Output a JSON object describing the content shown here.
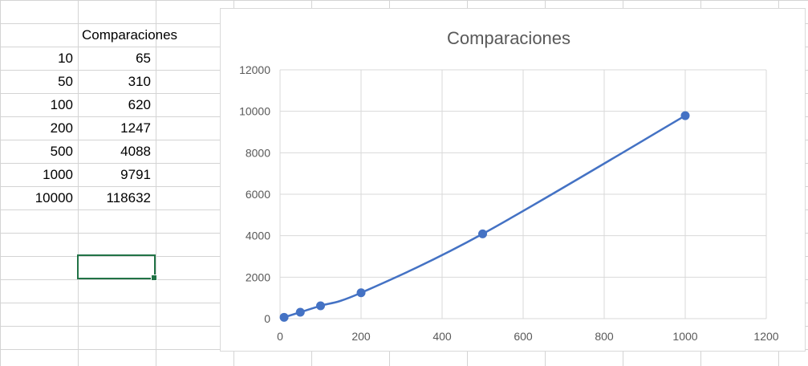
{
  "sheet": {
    "header_b": "Comparaciones",
    "rows": [
      {
        "a": "10",
        "b": "65"
      },
      {
        "a": "50",
        "b": "310"
      },
      {
        "a": "100",
        "b": "620"
      },
      {
        "a": "200",
        "b": "1247"
      },
      {
        "a": "500",
        "b": "4088"
      },
      {
        "a": "1000",
        "b": "9791"
      },
      {
        "a": "10000",
        "b": "118632"
      }
    ],
    "selection_color": "#217346"
  },
  "chart_data": {
    "type": "scatter",
    "title": "Comparaciones",
    "xlabel": "",
    "ylabel": "",
    "xlim": [
      0,
      1200
    ],
    "ylim": [
      0,
      12000
    ],
    "xticks": [
      "0",
      "200",
      "400",
      "600",
      "800",
      "1000",
      "1200"
    ],
    "yticks": [
      "0",
      "2000",
      "4000",
      "6000",
      "8000",
      "10000",
      "12000"
    ],
    "grid": true,
    "smoothed_line": true,
    "series": [
      {
        "x": [
          10,
          50,
          100,
          200,
          500,
          1000
        ],
        "y": [
          65,
          310,
          620,
          1247,
          4088,
          9791
        ],
        "color": "#4472c4"
      }
    ]
  }
}
